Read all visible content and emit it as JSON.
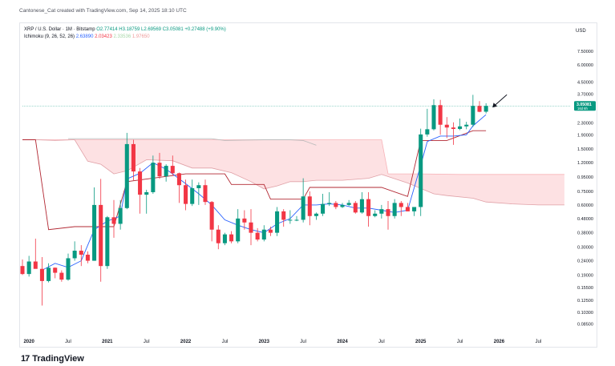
{
  "header": {
    "credit": "Cantonese_Cat created with TradingView.com, Sep 14, 2025 18:10 UTC"
  },
  "legend": {
    "symbol": "XRP / U.S. Dollar · 1M · Bitstamp",
    "open": "O2.77414",
    "high": "H3.18759",
    "low": "L2.69569",
    "close": "C3.05081",
    "change": "+0.27488 (+9.90%)",
    "indicator": "Ichimoku (9, 26, 52, 26)",
    "ind_v1": "2.63890",
    "ind_v2": "2.03423",
    "ind_v3": "2.33536",
    "ind_v4": "1.97650"
  },
  "axis": {
    "currency": "USD",
    "y_ticks": [
      {
        "label": "7.50000",
        "value": 7.5
      },
      {
        "label": "6.00000",
        "value": 6.0
      },
      {
        "label": "4.50000",
        "value": 4.5
      },
      {
        "label": "3.70000",
        "value": 3.7
      },
      {
        "label": "2.30000",
        "value": 2.3
      },
      {
        "label": "1.90000",
        "value": 1.9
      },
      {
        "label": "1.50000",
        "value": 1.5
      },
      {
        "label": "1.20000",
        "value": 1.2
      },
      {
        "label": "0.95000",
        "value": 0.95
      },
      {
        "label": "0.75000",
        "value": 0.75
      },
      {
        "label": "0.60000",
        "value": 0.6
      },
      {
        "label": "0.48000",
        "value": 0.48
      },
      {
        "label": "0.38000",
        "value": 0.38
      },
      {
        "label": "0.30000",
        "value": 0.3
      },
      {
        "label": "0.24000",
        "value": 0.24
      },
      {
        "label": "0.19000",
        "value": 0.19
      },
      {
        "label": "0.15500",
        "value": 0.155
      },
      {
        "label": "0.12500",
        "value": 0.125
      },
      {
        "label": "0.10300",
        "value": 0.103
      },
      {
        "label": "0.08500",
        "value": 0.085
      }
    ],
    "x_ticks": [
      {
        "label": "2020",
        "t": 0,
        "bold": true
      },
      {
        "label": "Jul",
        "t": 6
      },
      {
        "label": "2021",
        "t": 12,
        "bold": true
      },
      {
        "label": "Jul",
        "t": 18
      },
      {
        "label": "2022",
        "t": 24,
        "bold": true
      },
      {
        "label": "Jul",
        "t": 30
      },
      {
        "label": "2023",
        "t": 36,
        "bold": true
      },
      {
        "label": "Jul",
        "t": 42
      },
      {
        "label": "2024",
        "t": 48,
        "bold": true
      },
      {
        "label": "Jul",
        "t": 54
      },
      {
        "label": "2025",
        "t": 60,
        "bold": true
      },
      {
        "label": "Jul",
        "t": 66
      },
      {
        "label": "2026",
        "t": 72,
        "bold": true
      },
      {
        "label": "Jul",
        "t": 78
      }
    ],
    "price_badge": "3.05081",
    "price_badge_sub": "16d 6h"
  },
  "chart_data": {
    "type": "candlestick",
    "y_scale": "log",
    "ylim": [
      0.075,
      9.0
    ],
    "x_range_months": [
      -1,
      83
    ],
    "x_start": "2019-12",
    "candles": [
      {
        "t": -1,
        "o": 0.22,
        "h": 0.245,
        "l": 0.19,
        "c": 0.193
      },
      {
        "t": 0,
        "o": 0.193,
        "h": 0.26,
        "l": 0.185,
        "c": 0.237
      },
      {
        "t": 1,
        "o": 0.237,
        "h": 0.345,
        "l": 0.22,
        "c": 0.21
      },
      {
        "t": 2,
        "o": 0.21,
        "h": 0.255,
        "l": 0.115,
        "c": 0.172
      },
      {
        "t": 3,
        "o": 0.172,
        "h": 0.23,
        "l": 0.168,
        "c": 0.214
      },
      {
        "t": 4,
        "o": 0.214,
        "h": 0.215,
        "l": 0.18,
        "c": 0.197
      },
      {
        "t": 5,
        "o": 0.197,
        "h": 0.205,
        "l": 0.17,
        "c": 0.176
      },
      {
        "t": 6,
        "o": 0.176,
        "h": 0.27,
        "l": 0.173,
        "c": 0.25
      },
      {
        "t": 7,
        "o": 0.25,
        "h": 0.33,
        "l": 0.24,
        "c": 0.283
      },
      {
        "t": 8,
        "o": 0.283,
        "h": 0.31,
        "l": 0.22,
        "c": 0.265
      },
      {
        "t": 9,
        "o": 0.265,
        "h": 0.28,
        "l": 0.23,
        "c": 0.24
      },
      {
        "t": 10,
        "o": 0.24,
        "h": 0.8,
        "l": 0.24,
        "c": 0.6
      },
      {
        "t": 11,
        "o": 0.6,
        "h": 0.92,
        "l": 0.17,
        "c": 0.22
      },
      {
        "t": 12,
        "o": 0.22,
        "h": 0.5,
        "l": 0.21,
        "c": 0.49
      },
      {
        "t": 13,
        "o": 0.49,
        "h": 0.65,
        "l": 0.35,
        "c": 0.44
      },
      {
        "t": 14,
        "o": 0.44,
        "h": 0.65,
        "l": 0.4,
        "c": 0.57
      },
      {
        "t": 15,
        "o": 0.57,
        "h": 1.96,
        "l": 0.56,
        "c": 1.63
      },
      {
        "t": 16,
        "o": 1.63,
        "h": 1.75,
        "l": 0.9,
        "c": 1.04
      },
      {
        "t": 17,
        "o": 1.04,
        "h": 1.1,
        "l": 0.52,
        "c": 0.71
      },
      {
        "t": 18,
        "o": 0.71,
        "h": 0.77,
        "l": 0.52,
        "c": 0.74
      },
      {
        "t": 19,
        "o": 0.74,
        "h": 1.35,
        "l": 0.72,
        "c": 1.2
      },
      {
        "t": 20,
        "o": 1.2,
        "h": 1.41,
        "l": 0.92,
        "c": 0.96
      },
      {
        "t": 21,
        "o": 0.96,
        "h": 1.17,
        "l": 0.88,
        "c": 1.14
      },
      {
        "t": 22,
        "o": 1.14,
        "h": 1.35,
        "l": 0.97,
        "c": 1.01
      },
      {
        "t": 23,
        "o": 1.01,
        "h": 1.02,
        "l": 0.62,
        "c": 0.83
      },
      {
        "t": 24,
        "o": 0.83,
        "h": 0.91,
        "l": 0.55,
        "c": 0.61
      },
      {
        "t": 25,
        "o": 0.61,
        "h": 0.91,
        "l": 0.59,
        "c": 0.79
      },
      {
        "t": 26,
        "o": 0.79,
        "h": 0.87,
        "l": 0.6,
        "c": 0.83
      },
      {
        "t": 27,
        "o": 0.83,
        "h": 0.91,
        "l": 0.6,
        "c": 0.63
      },
      {
        "t": 28,
        "o": 0.63,
        "h": 0.64,
        "l": 0.33,
        "c": 0.4
      },
      {
        "t": 29,
        "o": 0.4,
        "h": 0.43,
        "l": 0.29,
        "c": 0.32
      },
      {
        "t": 30,
        "o": 0.32,
        "h": 0.38,
        "l": 0.31,
        "c": 0.37
      },
      {
        "t": 31,
        "o": 0.37,
        "h": 0.39,
        "l": 0.32,
        "c": 0.33
      },
      {
        "t": 32,
        "o": 0.33,
        "h": 0.56,
        "l": 0.32,
        "c": 0.48
      },
      {
        "t": 33,
        "o": 0.48,
        "h": 0.55,
        "l": 0.4,
        "c": 0.45
      },
      {
        "t": 34,
        "o": 0.45,
        "h": 0.56,
        "l": 0.31,
        "c": 0.38
      },
      {
        "t": 35,
        "o": 0.38,
        "h": 0.41,
        "l": 0.33,
        "c": 0.34
      },
      {
        "t": 36,
        "o": 0.34,
        "h": 0.43,
        "l": 0.33,
        "c": 0.4
      },
      {
        "t": 37,
        "o": 0.4,
        "h": 0.42,
        "l": 0.36,
        "c": 0.38
      },
      {
        "t": 38,
        "o": 0.38,
        "h": 0.58,
        "l": 0.36,
        "c": 0.54
      },
      {
        "t": 39,
        "o": 0.54,
        "h": 0.56,
        "l": 0.42,
        "c": 0.47
      },
      {
        "t": 40,
        "o": 0.47,
        "h": 0.55,
        "l": 0.44,
        "c": 0.47
      },
      {
        "t": 41,
        "o": 0.47,
        "h": 0.5,
        "l": 0.46,
        "c": 0.47
      },
      {
        "t": 42,
        "o": 0.47,
        "h": 0.93,
        "l": 0.45,
        "c": 0.69
      },
      {
        "t": 43,
        "o": 0.69,
        "h": 0.75,
        "l": 0.43,
        "c": 0.5
      },
      {
        "t": 44,
        "o": 0.5,
        "h": 0.53,
        "l": 0.47,
        "c": 0.52
      },
      {
        "t": 45,
        "o": 0.52,
        "h": 0.72,
        "l": 0.5,
        "c": 0.61
      },
      {
        "t": 46,
        "o": 0.61,
        "h": 0.74,
        "l": 0.59,
        "c": 0.62
      },
      {
        "t": 47,
        "o": 0.62,
        "h": 0.64,
        "l": 0.56,
        "c": 0.58
      },
      {
        "t": 48,
        "o": 0.58,
        "h": 0.62,
        "l": 0.57,
        "c": 0.6
      },
      {
        "t": 49,
        "o": 0.6,
        "h": 0.65,
        "l": 0.59,
        "c": 0.62
      },
      {
        "t": 50,
        "o": 0.62,
        "h": 0.64,
        "l": 0.52,
        "c": 0.53
      },
      {
        "t": 51,
        "o": 0.53,
        "h": 0.74,
        "l": 0.52,
        "c": 0.66
      },
      {
        "t": 52,
        "o": 0.66,
        "h": 0.74,
        "l": 0.42,
        "c": 0.5
      },
      {
        "t": 53,
        "o": 0.5,
        "h": 0.55,
        "l": 0.49,
        "c": 0.52
      },
      {
        "t": 54,
        "o": 0.52,
        "h": 0.6,
        "l": 0.48,
        "c": 0.56
      },
      {
        "t": 55,
        "o": 0.56,
        "h": 0.64,
        "l": 0.4,
        "c": 0.5
      },
      {
        "t": 56,
        "o": 0.5,
        "h": 0.66,
        "l": 0.48,
        "c": 0.62
      },
      {
        "t": 57,
        "o": 0.62,
        "h": 0.64,
        "l": 0.5,
        "c": 0.58
      },
      {
        "t": 58,
        "o": 0.58,
        "h": 0.62,
        "l": 0.54,
        "c": 0.54
      },
      {
        "t": 59,
        "o": 0.54,
        "h": 0.58,
        "l": 0.5,
        "c": 0.58
      },
      {
        "t": 60,
        "o": 0.58,
        "h": 2.1,
        "l": 0.5,
        "c": 1.91
      },
      {
        "t": 61,
        "o": 1.91,
        "h": 2.91,
        "l": 1.84,
        "c": 2.08
      },
      {
        "t": 62,
        "o": 2.08,
        "h": 3.4,
        "l": 2.04,
        "c": 3.09
      },
      {
        "t": 63,
        "o": 3.09,
        "h": 3.37,
        "l": 1.9,
        "c": 2.24
      },
      {
        "t": 64,
        "o": 2.24,
        "h": 2.54,
        "l": 1.8,
        "c": 2.14
      },
      {
        "t": 65,
        "o": 2.14,
        "h": 2.33,
        "l": 1.61,
        "c": 2.09
      },
      {
        "t": 66,
        "o": 2.09,
        "h": 2.48,
        "l": 2.05,
        "c": 2.18
      },
      {
        "t": 67,
        "o": 2.18,
        "h": 2.35,
        "l": 2.08,
        "c": 2.24
      },
      {
        "t": 68,
        "o": 2.24,
        "h": 3.66,
        "l": 2.16,
        "c": 3.05
      },
      {
        "t": 69,
        "o": 3.05,
        "h": 3.3,
        "l": 2.75,
        "c": 2.77
      },
      {
        "t": 70,
        "o": 2.77414,
        "h": 3.18759,
        "l": 2.69569,
        "c": 3.05081
      }
    ],
    "tenkan": [
      [
        2,
        0.205
      ],
      [
        4,
        0.23
      ],
      [
        6,
        0.215
      ],
      [
        8,
        0.24
      ],
      [
        10,
        0.4
      ],
      [
        12,
        0.46
      ],
      [
        14,
        0.5
      ],
      [
        15,
        0.92
      ],
      [
        17,
        1.01
      ],
      [
        19,
        1.2
      ],
      [
        21,
        1.08
      ],
      [
        22,
        1.0
      ],
      [
        24,
        0.85
      ],
      [
        26,
        0.72
      ],
      [
        28,
        0.6
      ],
      [
        30,
        0.47
      ],
      [
        32,
        0.43
      ],
      [
        34,
        0.4
      ],
      [
        36,
        0.38
      ],
      [
        38,
        0.44
      ],
      [
        40,
        0.48
      ],
      [
        42,
        0.6
      ],
      [
        44,
        0.6
      ],
      [
        46,
        0.61
      ],
      [
        48,
        0.6
      ],
      [
        50,
        0.57
      ],
      [
        52,
        0.57
      ],
      [
        54,
        0.55
      ],
      [
        56,
        0.53
      ],
      [
        58,
        0.55
      ],
      [
        60,
        1.15
      ],
      [
        61,
        1.7
      ],
      [
        63,
        1.86
      ],
      [
        65,
        1.86
      ],
      [
        67,
        1.9
      ],
      [
        68,
        2.2
      ],
      [
        70,
        2.64
      ]
    ],
    "kijun": [
      [
        -1,
        1.75
      ],
      [
        1,
        1.75
      ],
      [
        3,
        0.4
      ],
      [
        7,
        0.42
      ],
      [
        11,
        0.42
      ],
      [
        13,
        0.42
      ],
      [
        15,
        0.88
      ],
      [
        24,
        1.0
      ],
      [
        30,
        1.0
      ],
      [
        31,
        0.84
      ],
      [
        36,
        0.84
      ],
      [
        37,
        0.66
      ],
      [
        42,
        0.66
      ],
      [
        43,
        0.8
      ],
      [
        54,
        0.8
      ],
      [
        58,
        0.69
      ],
      [
        60,
        1.73
      ],
      [
        64,
        1.73
      ],
      [
        65,
        1.8
      ],
      [
        68,
        2.03
      ],
      [
        70,
        2.03
      ]
    ],
    "cloud_a": [
      [
        1,
        1.75
      ],
      [
        14,
        1.75
      ],
      [
        20,
        1.75
      ],
      [
        26,
        1.75
      ],
      [
        30,
        1.75
      ],
      [
        34,
        1.75
      ],
      [
        40,
        1.75
      ],
      [
        46,
        1.75
      ],
      [
        52,
        1.75
      ],
      [
        54,
        1.75
      ],
      [
        55,
        1.0
      ],
      [
        60,
        1.0
      ],
      [
        66,
        0.99
      ],
      [
        72,
        0.99
      ],
      [
        78,
        0.99
      ],
      [
        82,
        0.99
      ]
    ],
    "cloud_b": [
      [
        1,
        1.75
      ],
      [
        4,
        1.73
      ],
      [
        7,
        1.75
      ],
      [
        9,
        1.23
      ],
      [
        11,
        1.17
      ],
      [
        13,
        1.0
      ],
      [
        15,
        1.05
      ],
      [
        18,
        1.26
      ],
      [
        22,
        1.24
      ],
      [
        25,
        1.1
      ],
      [
        28,
        1.1
      ],
      [
        31,
        1.02
      ],
      [
        34,
        0.88
      ],
      [
        36,
        0.78
      ],
      [
        38,
        0.82
      ],
      [
        40,
        0.88
      ],
      [
        42,
        0.88
      ],
      [
        44,
        0.9
      ],
      [
        48,
        0.9
      ],
      [
        52,
        0.93
      ],
      [
        54,
        0.99
      ],
      [
        58,
        0.86
      ],
      [
        62,
        0.72
      ],
      [
        64,
        0.7
      ],
      [
        68,
        0.67
      ],
      [
        70,
        0.63
      ],
      [
        74,
        0.61
      ],
      [
        78,
        0.6
      ],
      [
        82,
        0.6
      ]
    ],
    "chikou": [
      [
        6,
        1.78
      ],
      [
        8,
        1.78
      ],
      [
        12,
        1.78
      ],
      [
        16,
        1.78
      ],
      [
        20,
        1.78
      ],
      [
        24,
        1.78
      ],
      [
        28,
        1.78
      ],
      [
        30,
        1.73
      ],
      [
        33,
        1.74
      ],
      [
        36,
        1.75
      ],
      [
        40,
        1.75
      ],
      [
        42,
        1.73
      ],
      [
        44,
        1.6
      ]
    ],
    "current_price": 3.05081,
    "colors": {
      "up": "#089981",
      "down": "#f23645",
      "tenkan": "#2962ff",
      "kijun": "#b22833",
      "cloud_fill": "rgba(242,54,69,0.15)",
      "cloud_line_a": "#f7b3b8",
      "cloud_line_b": "#e0a0a6",
      "chikou": "#bdbdbd",
      "price_line": "#089981"
    }
  },
  "footer": {
    "brand": "TradingView"
  }
}
